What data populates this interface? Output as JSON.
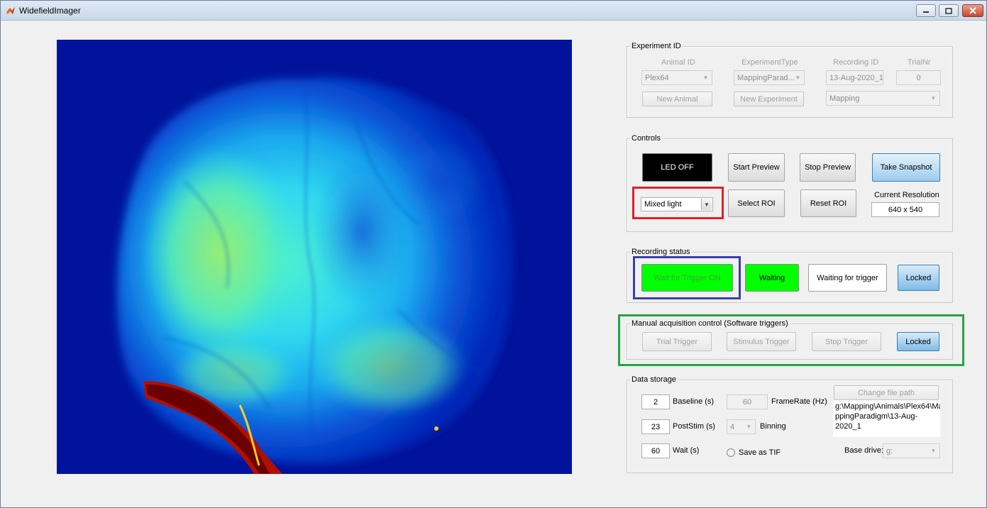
{
  "window": {
    "title": "WidefieldImager",
    "controls": [
      "minimize-icon",
      "maximize-icon",
      "close-icon"
    ]
  },
  "colors": {
    "status_green": "#00ff00",
    "led_black": "#000000",
    "highlight_red": "#e0202a",
    "highlight_blue": "#3b3fa8",
    "highlight_green": "#26a345"
  },
  "experiment": {
    "title": "Experiment ID",
    "animal_id_label": "Animal ID",
    "experiment_type_label": "ExperimentType",
    "recording_id_label": "Recording ID",
    "trial_nr_label": "TrialNr",
    "animal_value": "Plex64",
    "experiment_type_value": "MappingParad...",
    "recording_id_value": "13-Aug-2020_1",
    "trial_nr_value": "0",
    "new_animal": "New Animal",
    "new_experiment": "New Experiment",
    "paradigm_value": "Mapping"
  },
  "controls": {
    "title": "Controls",
    "led": "LED OFF",
    "start_preview": "Start Preview",
    "stop_preview": "Stop Preview",
    "take_snapshot": "Take Snapshot",
    "light_mode": "Mixed light",
    "select_roi": "Select ROI",
    "reset_roi": "Reset ROI",
    "current_resolution_label": "Current Resolution",
    "current_resolution_value": "640 x 540"
  },
  "recording": {
    "title": "Recording status",
    "wait_trigger": "Wait for Trigger ON",
    "waiting": "Waiting",
    "waiting_for_trigger": "Waiting for trigger",
    "locked": "Locked"
  },
  "manual": {
    "title": "Manual acquisition control (Software triggers)",
    "trial_trigger": "Trial Trigger",
    "stimulus_trigger": "Stimulus Trigger",
    "stop_trigger": "Stop Trigger",
    "locked": "Locked"
  },
  "storage": {
    "title": "Data storage",
    "baseline_value": "2",
    "baseline_label": "Baseline (s)",
    "framerate_value": "60",
    "framerate_label": "FrameRate (Hz)",
    "poststim_value": "23",
    "poststim_label": "PostStim (s)",
    "binning_value": "4",
    "binning_label": "Binning",
    "wait_value": "60",
    "wait_label": "Wait (s)",
    "save_tif_label": "Save as TIF",
    "change_path": "Change file path",
    "path_line1": "g:\\Mapping\\Animals\\Plex64\\Ma",
    "path_line2": "ppingParadigm\\13-Aug-2020_1",
    "base_drive_label": "Base drive:",
    "base_drive_value": "g:"
  }
}
